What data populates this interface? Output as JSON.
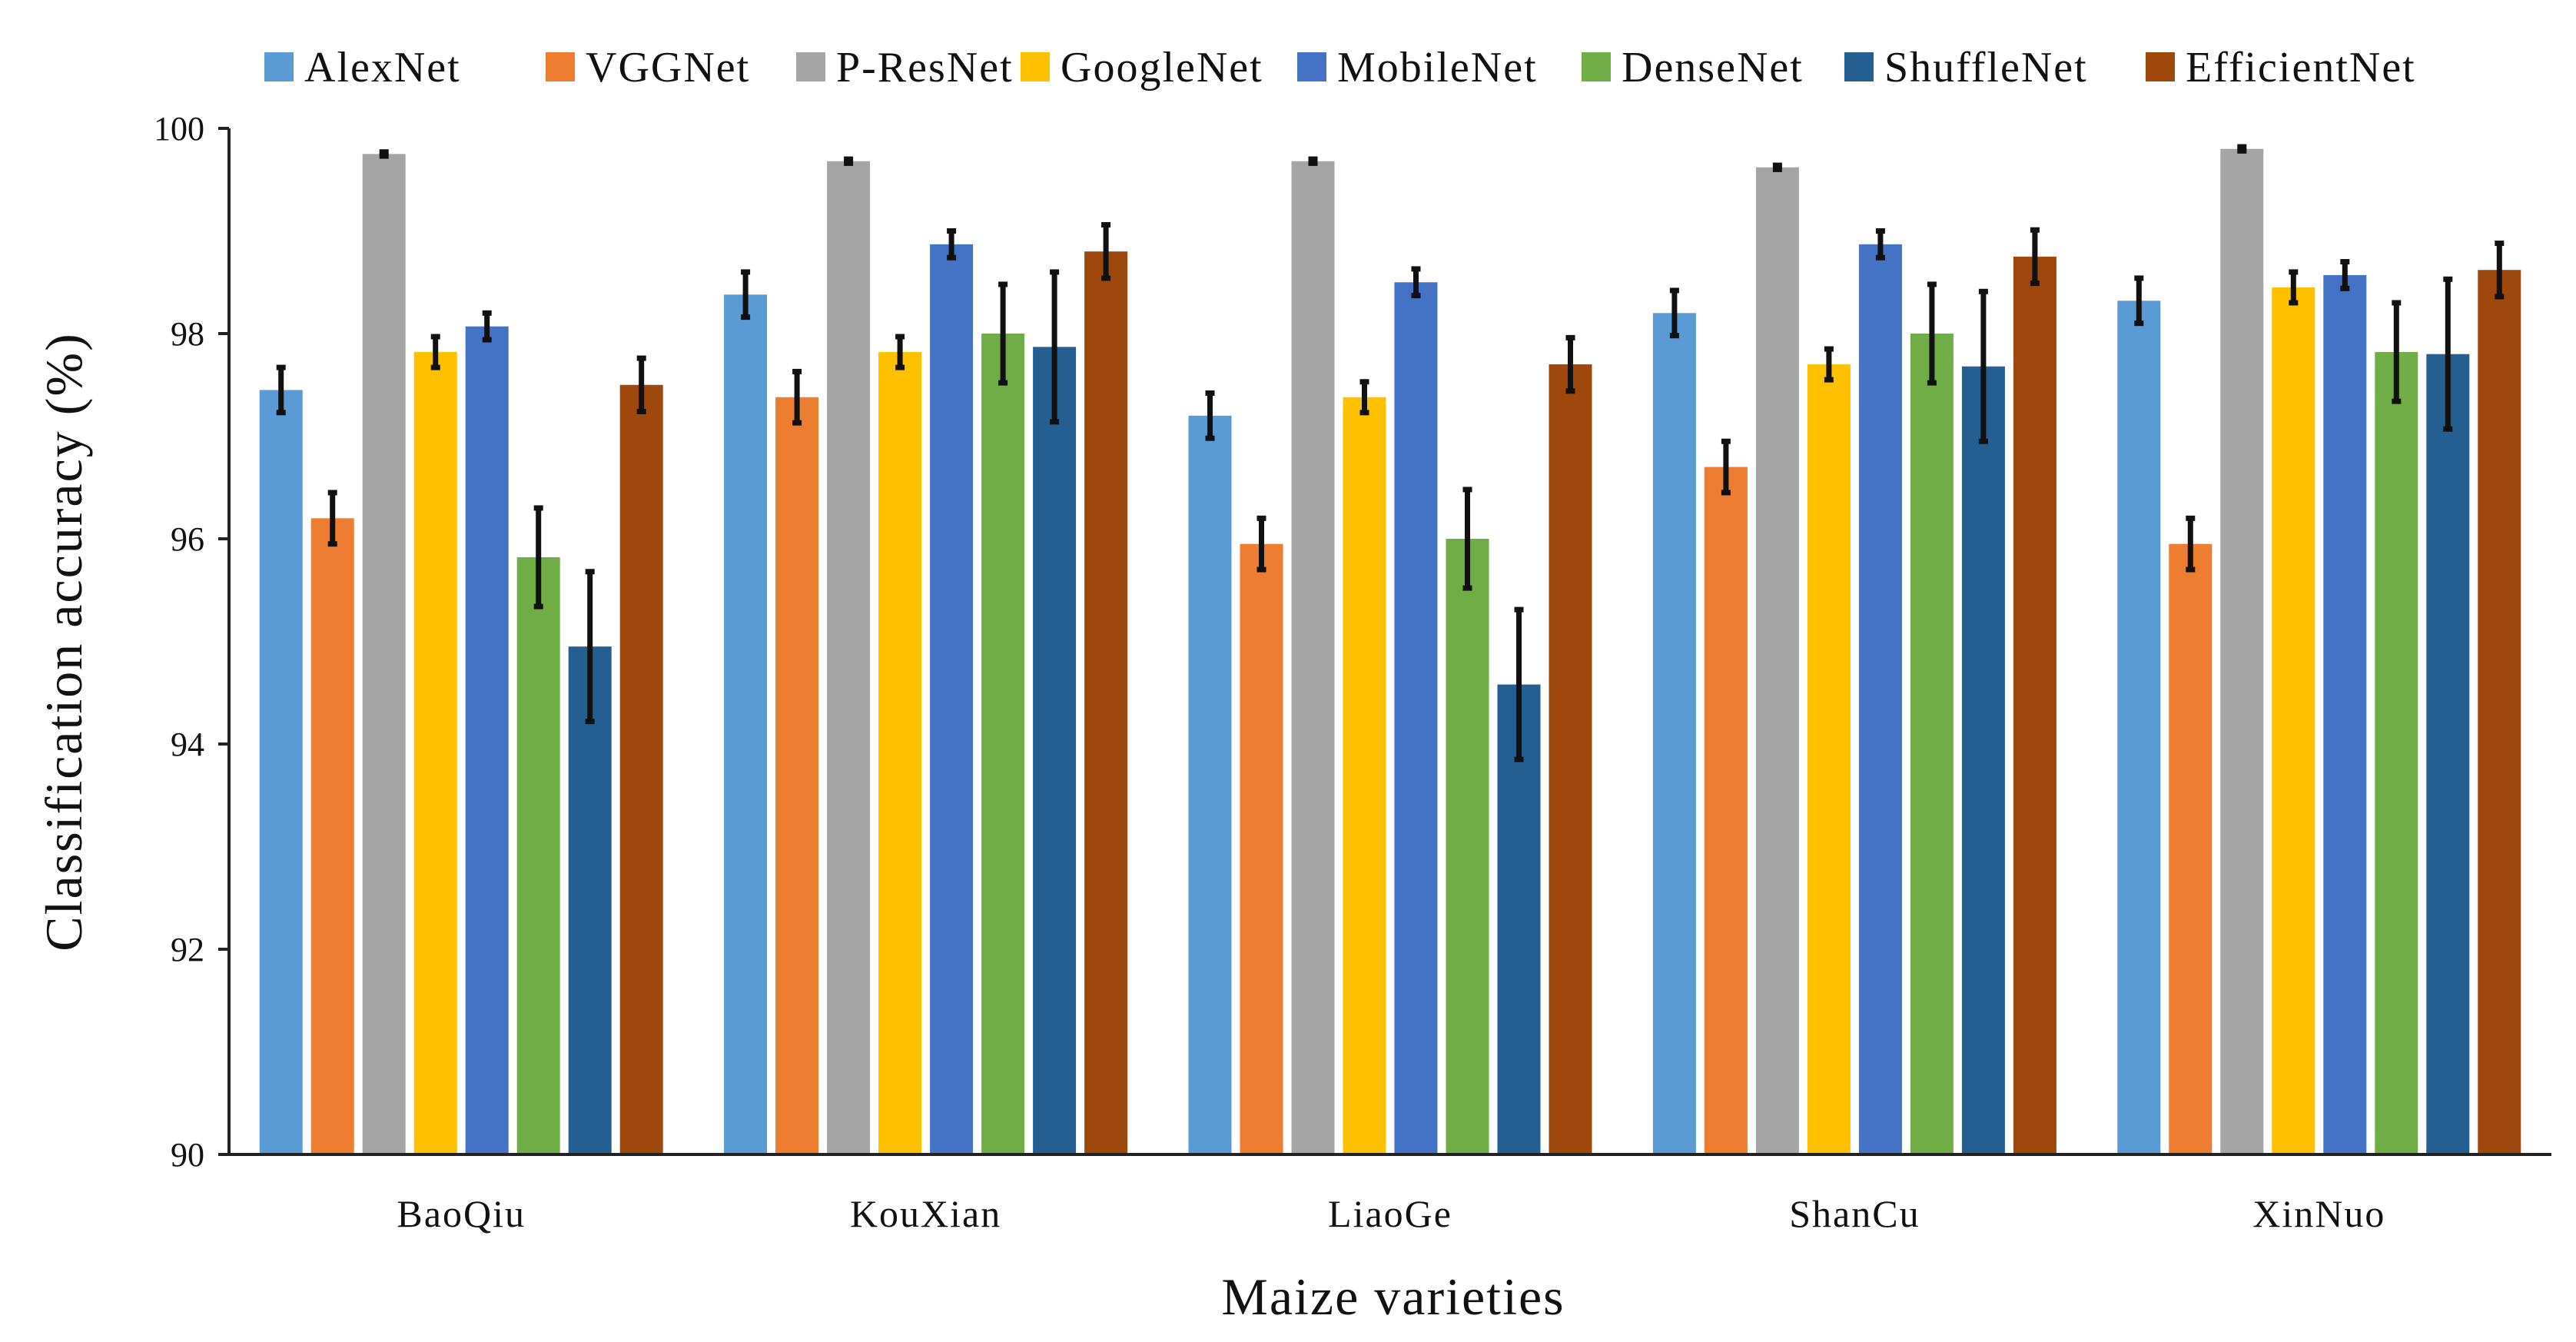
{
  "chart_data": {
    "type": "bar",
    "title": "",
    "xlabel": "Maize varieties",
    "ylabel": "Classification accuracy (%)",
    "ylim": [
      90,
      100
    ],
    "yticks": [
      "90",
      "92",
      "94",
      "96",
      "98",
      "100"
    ],
    "grid": false,
    "legend_position": "top",
    "categories": [
      "BaoQiu",
      "KouXian",
      "LiaoGe",
      "ShanCu",
      "XinNuo"
    ],
    "series": [
      {
        "name": "AlexNet",
        "color": "#5b9bd5",
        "values": [
          97.45,
          98.38,
          97.2,
          98.2,
          98.32
        ],
        "errors": [
          0.22,
          0.22,
          0.22,
          0.22,
          0.22
        ]
      },
      {
        "name": "VGGNet",
        "color": "#ed7d31",
        "values": [
          96.2,
          97.38,
          95.95,
          96.7,
          95.95
        ],
        "errors": [
          0.25,
          0.25,
          0.25,
          0.25,
          0.25
        ]
      },
      {
        "name": "P-ResNet",
        "color": "#a5a5a5",
        "values": [
          99.75,
          99.68,
          99.68,
          99.62,
          99.8
        ],
        "errors": [
          0.02,
          0.02,
          0.02,
          0.02,
          0.02
        ]
      },
      {
        "name": "GoogleNet",
        "color": "#ffc000",
        "values": [
          97.82,
          97.82,
          97.38,
          97.7,
          98.45
        ],
        "errors": [
          0.15,
          0.15,
          0.15,
          0.15,
          0.15
        ]
      },
      {
        "name": "MobileNet",
        "color": "#4472c4",
        "values": [
          98.07,
          98.87,
          98.5,
          98.87,
          98.57
        ],
        "errors": [
          0.13,
          0.13,
          0.13,
          0.13,
          0.13
        ]
      },
      {
        "name": "DenseNet",
        "color": "#70ad47",
        "values": [
          95.82,
          98.0,
          96.0,
          98.0,
          97.82
        ],
        "errors": [
          0.48,
          0.48,
          0.48,
          0.48,
          0.48
        ]
      },
      {
        "name": "ShuffleNet",
        "color": "#255e91",
        "values": [
          94.95,
          97.87,
          94.58,
          97.68,
          97.8
        ],
        "errors": [
          0.73,
          0.73,
          0.73,
          0.73,
          0.73
        ]
      },
      {
        "name": "EfficientNet",
        "color": "#9e480e",
        "values": [
          97.5,
          98.8,
          97.7,
          98.75,
          98.62
        ],
        "errors": [
          0.26,
          0.26,
          0.26,
          0.26,
          0.26
        ]
      }
    ]
  }
}
